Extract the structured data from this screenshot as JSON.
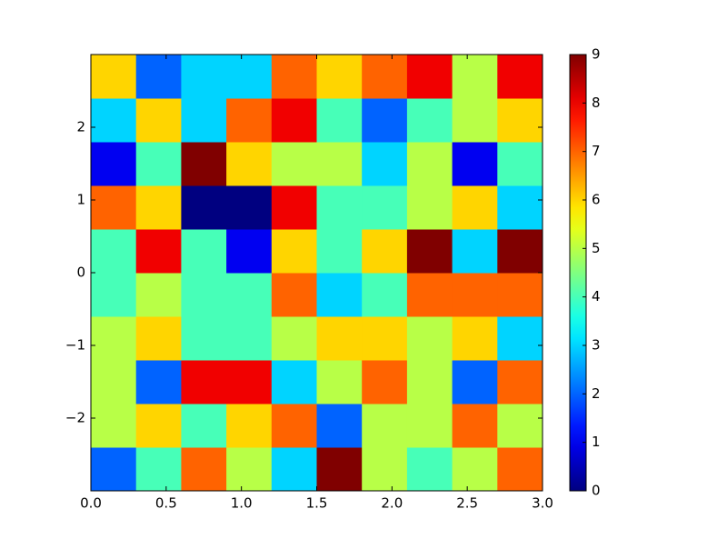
{
  "chart_data": {
    "type": "heatmap",
    "colormap": "jet",
    "x_edges": [
      0,
      0.3,
      0.6,
      0.9,
      1.2,
      1.5,
      1.8,
      2.1,
      2.4,
      2.7,
      3
    ],
    "y_edges": [
      -3,
      -2.4,
      -1.8,
      -1.2,
      -0.6,
      0,
      0.6,
      1.2,
      1.8,
      2.4,
      3
    ],
    "z": [
      [
        2,
        4,
        7,
        5,
        3,
        9,
        5,
        4,
        5,
        7
      ],
      [
        5,
        6,
        4,
        6,
        7,
        2,
        5,
        5,
        7,
        5
      ],
      [
        5,
        2,
        8,
        8,
        3,
        5,
        7,
        5,
        2,
        7
      ],
      [
        5,
        6,
        4,
        4,
        5,
        6,
        6,
        5,
        6,
        3
      ],
      [
        4,
        5,
        4,
        4,
        7,
        3,
        4,
        7,
        7,
        7
      ],
      [
        4,
        8,
        4,
        1,
        6,
        4,
        6,
        9,
        3,
        9
      ],
      [
        7,
        6,
        0,
        0,
        8,
        4,
        4,
        5,
        6,
        3
      ],
      [
        1,
        4,
        9,
        6,
        5,
        5,
        3,
        5,
        1,
        4
      ],
      [
        3,
        6,
        3,
        7,
        8,
        4,
        2,
        4,
        5,
        6
      ],
      [
        6,
        2,
        3,
        3,
        7,
        6,
        7,
        8,
        5,
        8
      ]
    ],
    "xlim": [
      0,
      3
    ],
    "ylim": [
      -3,
      3
    ],
    "xticks": [
      {
        "value": 0,
        "label": "0.0"
      },
      0.5,
      {
        "value": 1,
        "label": "1.0"
      },
      1.5,
      {
        "value": 2,
        "label": "2.0"
      },
      2.5,
      {
        "value": 3,
        "label": "3.0"
      }
    ],
    "yticks": [
      {
        "value": -2,
        "label": "−2"
      },
      {
        "value": -1,
        "label": "−1"
      },
      0,
      1,
      2
    ],
    "clim": [
      0,
      9
    ],
    "cticks": [
      0,
      1,
      2,
      3,
      4,
      5,
      6,
      7,
      8,
      9
    ]
  }
}
